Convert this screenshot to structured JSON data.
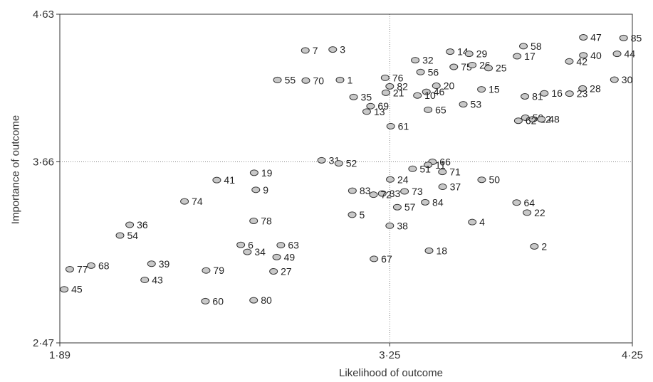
{
  "chart_data": {
    "type": "scatter",
    "xlabel": "Likelihood of outcome",
    "ylabel": "Importance of outcome",
    "xlim": [
      1.89,
      4.25
    ],
    "ylim": [
      2.47,
      4.63
    ],
    "x_ticks": [
      "1·89",
      "3·25",
      "4·25"
    ],
    "y_ticks": [
      "4·63",
      "3·66",
      "2·47"
    ],
    "reference_lines": {
      "x": 3.25,
      "y": 3.66
    },
    "marker": {
      "shape": "ellipse",
      "fill": "#c8c8c8",
      "stroke": "#333333"
    },
    "points": [
      {
        "label": "85",
        "x": 4.214,
        "y": 4.474
      },
      {
        "label": "47",
        "x": 4.048,
        "y": 4.478
      },
      {
        "label": "58",
        "x": 3.801,
        "y": 4.42
      },
      {
        "label": "44",
        "x": 4.187,
        "y": 4.37
      },
      {
        "label": "40",
        "x": 4.048,
        "y": 4.36
      },
      {
        "label": "14",
        "x": 3.499,
        "y": 4.384
      },
      {
        "label": "29",
        "x": 3.577,
        "y": 4.37
      },
      {
        "label": "17",
        "x": 3.775,
        "y": 4.354
      },
      {
        "label": "42",
        "x": 3.99,
        "y": 4.32
      },
      {
        "label": "7",
        "x": 2.902,
        "y": 4.392
      },
      {
        "label": "3",
        "x": 3.015,
        "y": 4.398
      },
      {
        "label": "32",
        "x": 3.355,
        "y": 4.328
      },
      {
        "label": "75",
        "x": 3.514,
        "y": 4.284
      },
      {
        "label": "26",
        "x": 3.59,
        "y": 4.296
      },
      {
        "label": "25",
        "x": 3.657,
        "y": 4.276
      },
      {
        "label": "56",
        "x": 3.377,
        "y": 4.25
      },
      {
        "label": "76",
        "x": 3.231,
        "y": 4.212
      },
      {
        "label": "55",
        "x": 2.787,
        "y": 4.198
      },
      {
        "label": "70",
        "x": 2.904,
        "y": 4.194
      },
      {
        "label": "1",
        "x": 3.045,
        "y": 4.198
      },
      {
        "label": "30",
        "x": 4.176,
        "y": 4.2
      },
      {
        "label": "82",
        "x": 3.25,
        "y": 4.156
      },
      {
        "label": "20",
        "x": 3.442,
        "y": 4.16
      },
      {
        "label": "28",
        "x": 4.045,
        "y": 4.142
      },
      {
        "label": "15",
        "x": 3.628,
        "y": 4.136
      },
      {
        "label": "46",
        "x": 3.401,
        "y": 4.12
      },
      {
        "label": "16",
        "x": 3.887,
        "y": 4.11
      },
      {
        "label": "23",
        "x": 3.991,
        "y": 4.108
      },
      {
        "label": "21",
        "x": 3.234,
        "y": 4.114
      },
      {
        "label": "10",
        "x": 3.364,
        "y": 4.096
      },
      {
        "label": "81",
        "x": 3.807,
        "y": 4.09
      },
      {
        "label": "35",
        "x": 3.101,
        "y": 4.086
      },
      {
        "label": "69",
        "x": 3.171,
        "y": 4.026
      },
      {
        "label": "53",
        "x": 3.553,
        "y": 4.038
      },
      {
        "label": "65",
        "x": 3.408,
        "y": 4.002
      },
      {
        "label": "13",
        "x": 3.155,
        "y": 3.99
      },
      {
        "label": "59",
        "x": 3.809,
        "y": 3.95
      },
      {
        "label": "12",
        "x": 3.84,
        "y": 3.94
      },
      {
        "label": "48",
        "x": 3.875,
        "y": 3.94
      },
      {
        "label": "62",
        "x": 3.78,
        "y": 3.93
      },
      {
        "label": "61",
        "x": 3.254,
        "y": 3.894
      },
      {
        "label": "31",
        "x": 2.969,
        "y": 3.67
      },
      {
        "label": "52",
        "x": 3.04,
        "y": 3.65
      },
      {
        "label": "66",
        "x": 3.426,
        "y": 3.66
      },
      {
        "label": "11",
        "x": 3.408,
        "y": 3.64
      },
      {
        "label": "51",
        "x": 3.344,
        "y": 3.614
      },
      {
        "label": "71",
        "x": 3.467,
        "y": 3.594
      },
      {
        "label": "19",
        "x": 2.691,
        "y": 3.588
      },
      {
        "label": "41",
        "x": 2.537,
        "y": 3.54
      },
      {
        "label": "24",
        "x": 3.252,
        "y": 3.544
      },
      {
        "label": "50",
        "x": 3.629,
        "y": 3.542
      },
      {
        "label": "37",
        "x": 3.468,
        "y": 3.496
      },
      {
        "label": "9",
        "x": 2.698,
        "y": 3.476
      },
      {
        "label": "83",
        "x": 3.096,
        "y": 3.47
      },
      {
        "label": "73",
        "x": 3.311,
        "y": 3.466
      },
      {
        "label": "33",
        "x": 3.219,
        "y": 3.452
      },
      {
        "label": "72",
        "x": 3.183,
        "y": 3.444
      },
      {
        "label": "74",
        "x": 2.404,
        "y": 3.4
      },
      {
        "label": "84",
        "x": 3.396,
        "y": 3.394
      },
      {
        "label": "64",
        "x": 3.773,
        "y": 3.392
      },
      {
        "label": "57",
        "x": 3.281,
        "y": 3.362
      },
      {
        "label": "22",
        "x": 3.816,
        "y": 3.326
      },
      {
        "label": "5",
        "x": 3.095,
        "y": 3.312
      },
      {
        "label": "78",
        "x": 2.689,
        "y": 3.272
      },
      {
        "label": "4",
        "x": 3.59,
        "y": 3.264
      },
      {
        "label": "36",
        "x": 2.178,
        "y": 3.246
      },
      {
        "label": "38",
        "x": 3.25,
        "y": 3.24
      },
      {
        "label": "54",
        "x": 2.138,
        "y": 3.176
      },
      {
        "label": "6",
        "x": 2.636,
        "y": 3.114
      },
      {
        "label": "63",
        "x": 2.801,
        "y": 3.112
      },
      {
        "label": "2",
        "x": 3.846,
        "y": 3.104
      },
      {
        "label": "34",
        "x": 2.663,
        "y": 3.068
      },
      {
        "label": "18",
        "x": 3.412,
        "y": 3.076
      },
      {
        "label": "49",
        "x": 2.784,
        "y": 3.034
      },
      {
        "label": "67",
        "x": 3.185,
        "y": 3.022
      },
      {
        "label": "39",
        "x": 2.268,
        "y": 2.99
      },
      {
        "label": "68",
        "x": 2.019,
        "y": 2.978
      },
      {
        "label": "77",
        "x": 1.931,
        "y": 2.954
      },
      {
        "label": "79",
        "x": 2.493,
        "y": 2.946
      },
      {
        "label": "27",
        "x": 2.771,
        "y": 2.94
      },
      {
        "label": "43",
        "x": 2.24,
        "y": 2.884
      },
      {
        "label": "45",
        "x": 1.908,
        "y": 2.822
      },
      {
        "label": "60",
        "x": 2.49,
        "y": 2.744
      },
      {
        "label": "80",
        "x": 2.689,
        "y": 2.75
      }
    ]
  }
}
